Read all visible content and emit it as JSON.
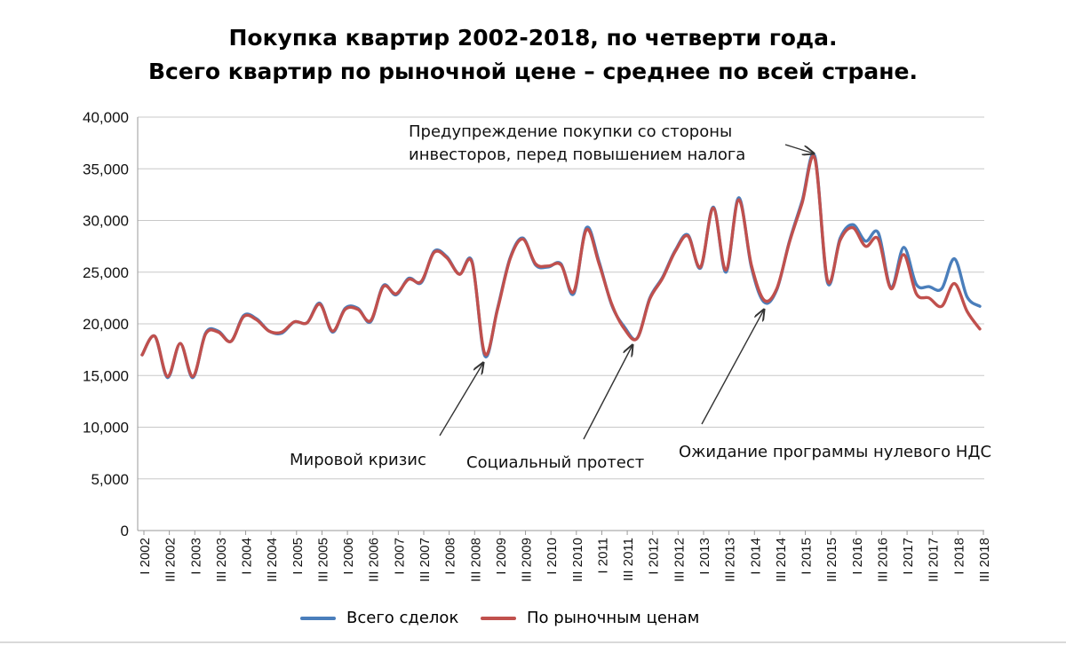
{
  "chart_data": {
    "type": "line",
    "title": "Покупка квартир 2002-2018, по четверти года.",
    "subtitle": "Всего квартир по рыночной цене – среднее по всей стране.",
    "ylim": [
      0,
      40000
    ],
    "yticks": [
      "0",
      "5,000",
      "10,000",
      "15,000",
      "20,000",
      "25,000",
      "30,000",
      "35,000",
      "40,000"
    ],
    "x_tick_labels": [
      "I 2002",
      "III 2002",
      "I 2003",
      "III 2003",
      "I 2004",
      "III 2004",
      "I 2005",
      "III 2005",
      "I 2006",
      "III 2006",
      "I 2007",
      "III 2007",
      "I 2008",
      "III 2008",
      "I 2009",
      "III 2009",
      "I 2010",
      "III 2010",
      "I 2011",
      "III 2011",
      "I 2012",
      "III 2012",
      "I 2013",
      "III 2013",
      "I 2014",
      "III 2014",
      "I 2015",
      "III 2015",
      "I 2016",
      "III 2016",
      "I 2017",
      "III 2017",
      "I 2018",
      "III 2018"
    ],
    "grid": "horizontal",
    "legend_position": "bottom",
    "series": [
      {
        "name": "Всего сделок",
        "color": "#4a7ebb",
        "values": [
          17000,
          18800,
          14800,
          18100,
          14800,
          19100,
          19300,
          18300,
          20800,
          20500,
          19300,
          19100,
          20200,
          20100,
          22000,
          19200,
          21500,
          21500,
          20200,
          23700,
          22800,
          24400,
          24000,
          27000,
          26500,
          24800,
          26000,
          16900,
          21500,
          26400,
          28300,
          25700,
          25500,
          25800,
          22900,
          29300,
          26000,
          21800,
          19700,
          18600,
          22500,
          24500,
          27100,
          28600,
          25400,
          31300,
          25000,
          32200,
          25500,
          22100,
          23300,
          28000,
          31900,
          36200,
          24000,
          28300,
          29600,
          28000,
          28800,
          23500,
          27400,
          23800,
          23600,
          23400,
          26300,
          22600,
          21700
        ]
      },
      {
        "name": "По рыночным ценам",
        "color": "#c0504d",
        "values": [
          17000,
          18800,
          14900,
          18100,
          14900,
          19000,
          19200,
          18300,
          20700,
          20400,
          19300,
          19200,
          20200,
          20100,
          21900,
          19300,
          21400,
          21400,
          20300,
          23600,
          22900,
          24300,
          24100,
          26900,
          26400,
          24800,
          25900,
          17100,
          21400,
          26300,
          28200,
          25800,
          25600,
          25700,
          23100,
          29100,
          25800,
          21900,
          19500,
          18600,
          22400,
          24400,
          27000,
          28500,
          25500,
          31200,
          25200,
          32000,
          25700,
          22300,
          23400,
          27900,
          31700,
          36000,
          24200,
          28100,
          29300,
          27500,
          28200,
          23400,
          26700,
          22900,
          22500,
          21700,
          23900,
          21200,
          19500
        ]
      }
    ],
    "annotations": [
      {
        "text": "Мировой кризис"
      },
      {
        "text": "Социальный протест"
      },
      {
        "text": "Ожидание программы нулевого НДС"
      },
      {
        "text_line1": "Предупреждение покупки со стороны",
        "text_line2": "инвесторов, перед повышением налога"
      }
    ]
  }
}
